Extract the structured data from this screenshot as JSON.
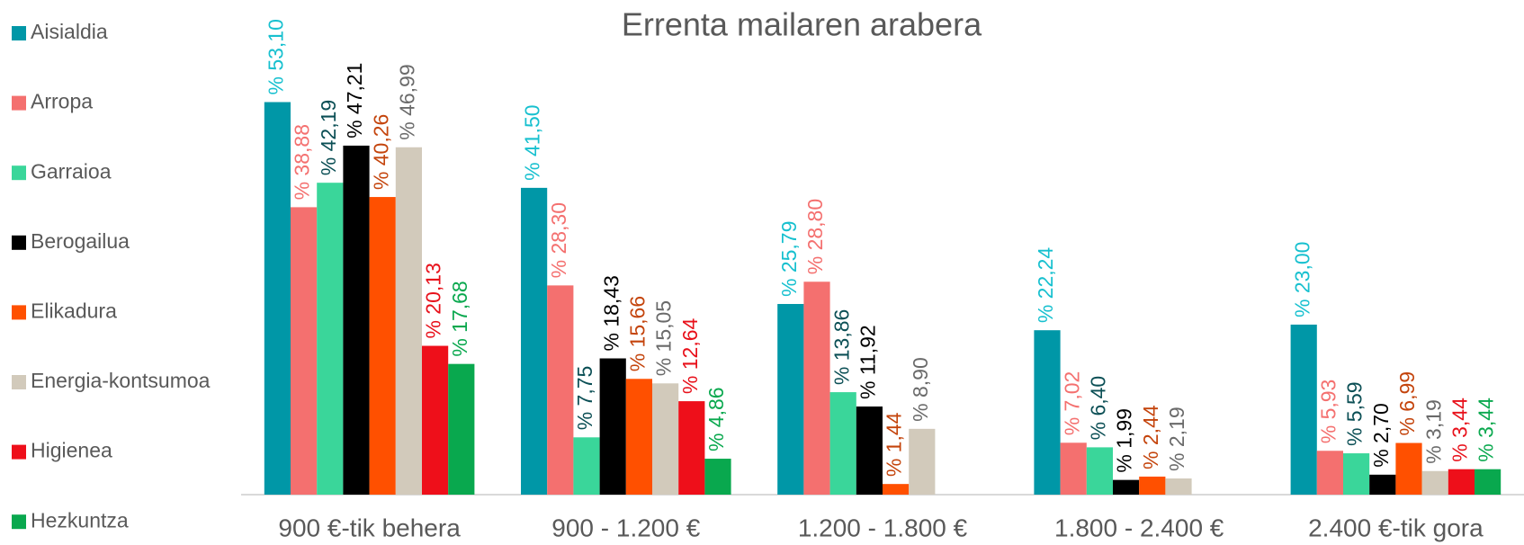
{
  "chart_data": {
    "type": "bar",
    "title": "Errenta mailaren arabera",
    "categories": [
      "900 €-tik behera",
      "900 - 1.200 €",
      "1.200 - 1.800 €",
      "1.800 - 2.400 €",
      "2.400 €-tik gora"
    ],
    "legend": "left",
    "series": [
      {
        "name": "Aisialdia",
        "color": "#0097a7",
        "label_color": "#17c0cf",
        "values": [
          53.1,
          41.5,
          25.79,
          22.24,
          23.0
        ],
        "value_labels": [
          "% 53,10",
          "% 41,50",
          "% 25,79",
          "% 22,24",
          "% 23,00"
        ]
      },
      {
        "name": "Arropa",
        "color": "#f4706f",
        "label_color": "#f4706f",
        "values": [
          38.88,
          28.3,
          28.8,
          7.02,
          5.93
        ],
        "value_labels": [
          "% 38,88",
          "% 28,30",
          "% 28,80",
          "% 7,02",
          "% 5,93"
        ]
      },
      {
        "name": "Garraioa",
        "color": "#3ad69a",
        "label_color": "#0b4f55",
        "values": [
          42.19,
          7.75,
          13.86,
          6.4,
          5.59
        ],
        "value_labels": [
          "% 42,19",
          "% 7,75",
          "% 13,86",
          "% 6,40",
          "% 5,59"
        ]
      },
      {
        "name": "Berogailua",
        "color": "#000000",
        "label_color": "#000000",
        "values": [
          47.21,
          18.43,
          11.92,
          1.99,
          2.7
        ],
        "value_labels": [
          "% 47,21",
          "% 18,43",
          "% 11,92",
          "% 1,99",
          "% 2,70"
        ]
      },
      {
        "name": "Elikadura",
        "color": "#ff5000",
        "label_color": "#c4440c",
        "values": [
          40.26,
          15.66,
          1.44,
          2.44,
          6.99
        ],
        "value_labels": [
          "% 40,26",
          "% 15,66",
          "% 1,44",
          "% 2,44",
          "% 6,99"
        ]
      },
      {
        "name": "Energia-kontsumoa",
        "color": "#d2cabb",
        "label_color": "#6a6a6a",
        "values": [
          46.99,
          15.05,
          8.9,
          2.19,
          3.19
        ],
        "value_labels": [
          "% 46,99",
          "% 15,05",
          "% 8,90",
          "% 2,19",
          "% 3,19"
        ]
      },
      {
        "name": "Higienea",
        "color": "#ee0f1a",
        "label_color": "#e8101a",
        "values": [
          20.13,
          12.64,
          null,
          null,
          3.44
        ],
        "value_labels": [
          "% 20,13",
          "% 12,64",
          null,
          null,
          "% 3,44"
        ]
      },
      {
        "name": "Hezkuntza",
        "color": "#09a84e",
        "label_color": "#09a84e",
        "values": [
          17.68,
          4.86,
          null,
          null,
          3.44
        ],
        "value_labels": [
          "% 17,68",
          "% 4,86",
          null,
          null,
          "% 3,44"
        ]
      }
    ]
  }
}
